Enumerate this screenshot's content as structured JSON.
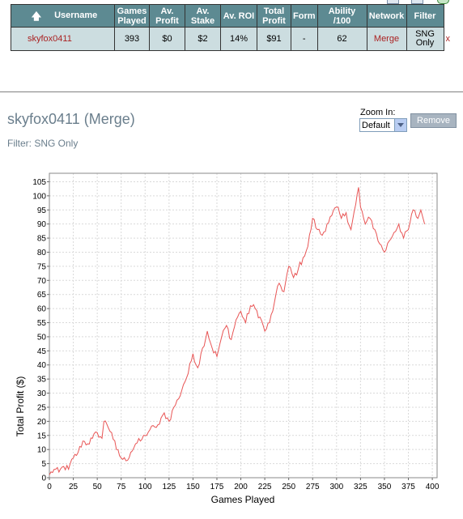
{
  "table": {
    "headers": {
      "username": "Username",
      "games_played": [
        "Games",
        "Played"
      ],
      "av_profit": [
        "Av.",
        "Profit"
      ],
      "av_stake": [
        "Av.",
        "Stake"
      ],
      "av_roi": "Av. ROI",
      "total_profit": [
        "Total",
        "Profit"
      ],
      "form": "Form",
      "ability": "Ability /100",
      "network": "Network",
      "filter": "Filter"
    },
    "row": {
      "username": "skyfox0411",
      "games_played": "393",
      "av_profit": "$0",
      "av_stake": "$2",
      "av_roi": "14%",
      "total_profit": "$91",
      "form": "-",
      "ability": "62",
      "network": "Merge",
      "filter": [
        "SNG",
        "Only"
      ],
      "close": "x"
    }
  },
  "player": {
    "title": "skyfox0411 (Merge)",
    "filter_line": "Filter: SNG Only"
  },
  "zoom": {
    "label": "Zoom In:",
    "selected": "Default"
  },
  "remove_button": "Remove",
  "colors": {
    "header_bg": "#5d8a92",
    "row_bg": "#ccdde0",
    "line": "#e85555",
    "title_text": "#6a7e8c"
  },
  "icons": [
    "toolbar-document-icon",
    "toolbar-page-icon",
    "toolbar-refresh-icon",
    "sort-up-arrow-icon",
    "dropdown-arrow-icon"
  ],
  "chart_data": {
    "type": "line",
    "title": "",
    "xlabel": "Games Played",
    "ylabel": "Total Profit ($)",
    "xlim": [
      0,
      405
    ],
    "ylim": [
      0,
      108
    ],
    "xticks": [
      0,
      25,
      50,
      75,
      100,
      125,
      150,
      175,
      200,
      225,
      250,
      275,
      300,
      325,
      350,
      375,
      400
    ],
    "yticks": [
      0,
      5,
      10,
      15,
      20,
      25,
      30,
      35,
      40,
      45,
      50,
      55,
      60,
      65,
      70,
      75,
      80,
      85,
      90,
      95,
      100,
      105
    ],
    "grid": true,
    "series": [
      {
        "x": [
          0,
          5,
          10,
          15,
          20,
          25,
          30,
          35,
          40,
          45,
          50,
          55,
          57,
          60,
          65,
          70,
          75,
          80,
          85,
          90,
          95,
          100,
          105,
          110,
          115,
          120,
          125,
          130,
          135,
          140,
          145,
          150,
          155,
          160,
          165,
          170,
          175,
          180,
          185,
          190,
          195,
          200,
          205,
          210,
          215,
          220,
          225,
          230,
          235,
          240,
          245,
          250,
          255,
          260,
          265,
          270,
          275,
          280,
          285,
          290,
          295,
          300,
          305,
          310,
          315,
          320,
          323,
          325,
          330,
          335,
          340,
          345,
          350,
          355,
          360,
          365,
          370,
          375,
          380,
          385,
          388,
          392
        ],
        "y": [
          1,
          3,
          2,
          4,
          3,
          7,
          9,
          13,
          12,
          14,
          16,
          14,
          20,
          19,
          16,
          10,
          7,
          6,
          9,
          12,
          13,
          15,
          17,
          18,
          19,
          23,
          20,
          25,
          28,
          33,
          37,
          44,
          39,
          46,
          52,
          46,
          43,
          50,
          54,
          49,
          56,
          59,
          55,
          61,
          60,
          57,
          52,
          55,
          62,
          69,
          66,
          75,
          71,
          74,
          78,
          82,
          92,
          88,
          86,
          90,
          93,
          96,
          92,
          94,
          88,
          97,
          103,
          96,
          90,
          92,
          88,
          83,
          80,
          84,
          87,
          90,
          85,
          88,
          95,
          92,
          95,
          90
        ]
      }
    ]
  }
}
